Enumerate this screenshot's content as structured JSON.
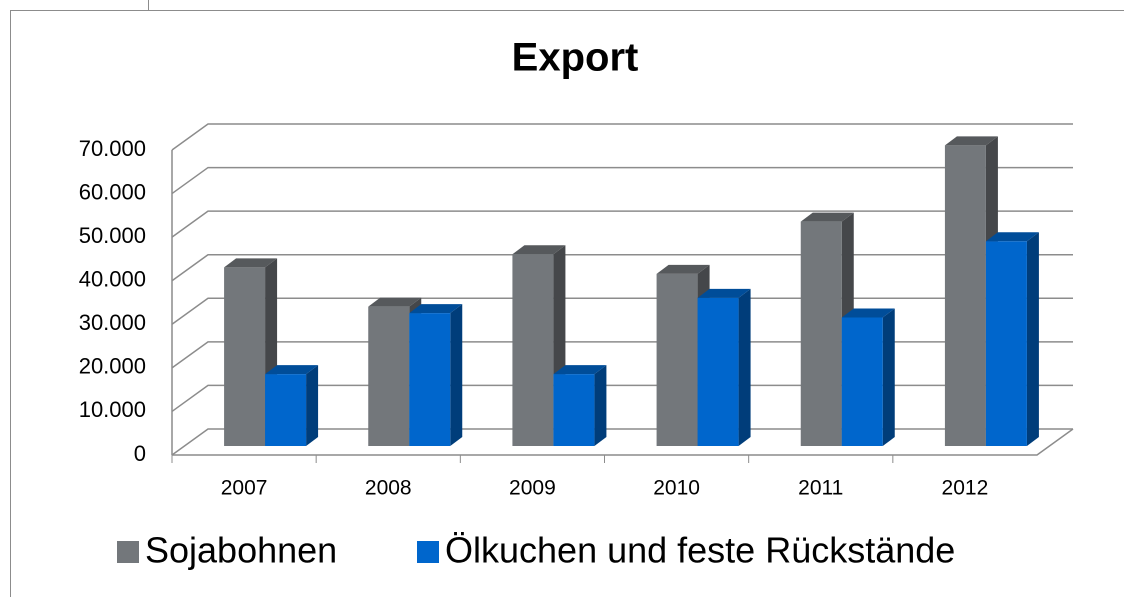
{
  "chart_data": {
    "type": "bar3d",
    "title": "Export",
    "categories": [
      "2007",
      "2008",
      "2009",
      "2010",
      "2011",
      "2012"
    ],
    "series": [
      {
        "name": "Sojabohnen",
        "color": "#73777b",
        "values": [
          41000,
          32000,
          44000,
          39500,
          51500,
          69000
        ]
      },
      {
        "name": "Ölkuchen und feste Rückstände",
        "color": "#0066cc",
        "values": [
          16500,
          30500,
          16500,
          34000,
          29500,
          47000
        ]
      }
    ],
    "ylim": [
      0,
      70000
    ],
    "yticks": [
      0,
      {
        "value": 10000,
        "label": "10.000"
      },
      {
        "value": 20000,
        "label": "20.000"
      },
      {
        "value": 30000,
        "label": "30.000"
      },
      {
        "value": 40000,
        "label": "40.000"
      },
      {
        "value": 50000,
        "label": "50.000"
      },
      {
        "value": 60000,
        "label": "60.000"
      },
      {
        "value": 70000,
        "label": "70.000"
      }
    ],
    "grid": true,
    "legend": "bottom"
  }
}
